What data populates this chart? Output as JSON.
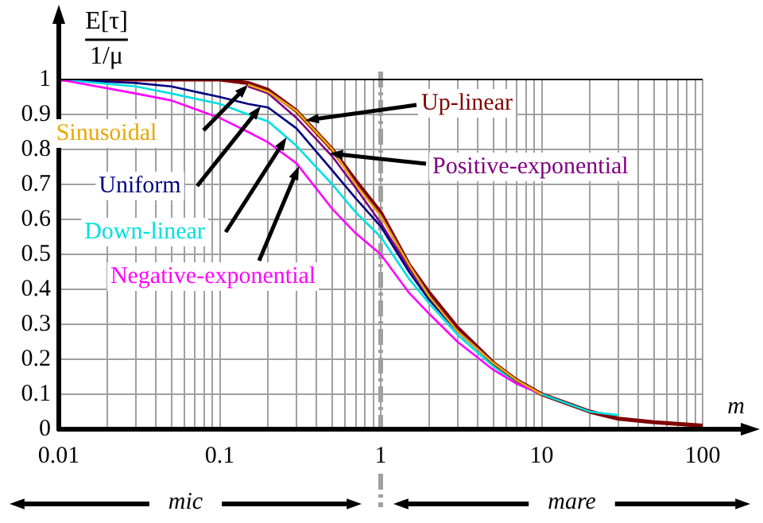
{
  "chart_data": {
    "type": "line",
    "xlabel": "m",
    "ylabel": "E[τ]\n1/μ",
    "log": "x",
    "grid": true,
    "legend": false,
    "marker": "none",
    "line_style": "solid",
    "x": [
      0.01,
      0.03,
      0.05,
      0.1,
      0.15,
      0.2,
      0.3,
      0.5,
      0.7,
      1,
      1.5,
      2,
      3,
      5,
      7,
      10,
      20,
      30,
      50,
      100
    ],
    "xlim": [
      0.01,
      100
    ],
    "xticks": [
      0.01,
      {
        "value": 0.02,
        "label": null
      },
      {
        "value": 0.03,
        "label": null
      },
      {
        "value": 0.04,
        "label": null
      },
      {
        "value": 0.05,
        "label": null
      },
      {
        "value": 0.06,
        "label": null
      },
      {
        "value": 0.07,
        "label": null
      },
      {
        "value": 0.08,
        "label": null
      },
      {
        "value": 0.09,
        "label": null
      },
      0.1,
      {
        "value": 0.2,
        "label": null
      },
      {
        "value": 0.3,
        "label": null
      },
      {
        "value": 0.4,
        "label": null
      },
      {
        "value": 0.5,
        "label": null
      },
      {
        "value": 0.6,
        "label": null
      },
      {
        "value": 0.7,
        "label": null
      },
      {
        "value": 0.8,
        "label": null
      },
      {
        "value": 0.9,
        "label": null
      },
      1,
      {
        "value": 2,
        "label": null
      },
      {
        "value": 3,
        "label": null
      },
      {
        "value": 4,
        "label": null
      },
      {
        "value": 5,
        "label": null
      },
      {
        "value": 6,
        "label": null
      },
      {
        "value": 7,
        "label": null
      },
      {
        "value": 8,
        "label": null
      },
      {
        "value": 9,
        "label": null
      },
      10,
      {
        "value": 20,
        "label": null
      },
      {
        "value": 30,
        "label": null
      },
      {
        "value": 40,
        "label": null
      },
      {
        "value": 50,
        "label": null
      },
      {
        "value": 60,
        "label": null
      },
      {
        "value": 70,
        "label": null
      },
      {
        "value": 80,
        "label": null
      },
      {
        "value": 90,
        "label": null
      },
      100
    ],
    "ylim": [
      0,
      1
    ],
    "yticks": [
      0,
      0.1,
      0.2,
      0.3,
      0.4,
      0.5,
      0.6,
      0.7,
      0.8,
      0.9,
      1
    ],
    "series": [
      {
        "name": "Up-linear",
        "color": "#800000",
        "values": [
          1,
          1,
          1,
          1,
          0.99,
          0.97,
          0.91,
          0.8,
          0.71,
          0.62,
          0.47,
          0.39,
          0.29,
          0.19,
          0.14,
          0.1,
          0.05,
          0.03,
          0.02,
          0.01
        ]
      },
      {
        "name": "Positive-exponential",
        "color": "#800080",
        "values": [
          null,
          null,
          null,
          null,
          0.98,
          0.96,
          0.89,
          0.78,
          0.69,
          0.59,
          0.46,
          0.38,
          0.28,
          0.19,
          0.14,
          0.1,
          null,
          null,
          null,
          null
        ]
      },
      {
        "name": "Sinusoidal",
        "color": "#e8a800",
        "values": [
          null,
          null,
          null,
          null,
          0.985,
          0.965,
          0.91,
          0.8,
          0.7,
          0.61,
          0.47,
          0.38,
          0.28,
          0.19,
          0.14,
          0.1,
          null,
          null,
          null,
          null
        ]
      },
      {
        "name": "Uniform",
        "color": "#000080",
        "values": [
          1,
          0.99,
          0.98,
          0.95,
          0.93,
          0.92,
          0.86,
          0.74,
          0.66,
          0.58,
          0.45,
          0.37,
          0.28,
          0.19,
          0.14,
          0.1,
          null,
          null,
          null,
          null
        ]
      },
      {
        "name": "Down-linear",
        "color": "#00e0e0",
        "values": [
          1,
          0.98,
          0.96,
          0.93,
          0.9,
          0.88,
          0.81,
          0.7,
          0.62,
          0.55,
          0.43,
          0.36,
          0.27,
          0.18,
          0.13,
          0.1,
          0.05,
          0.04,
          null,
          null
        ]
      },
      {
        "name": "Negative-exponential",
        "color": "#ff00ff",
        "values": [
          1,
          0.96,
          0.94,
          0.89,
          0.85,
          0.82,
          0.76,
          0.63,
          0.56,
          0.5,
          0.39,
          0.33,
          0.25,
          0.17,
          0.13,
          0.1,
          null,
          null,
          null,
          null
        ]
      }
    ],
    "ref_lines": [
      {
        "axis": "x",
        "value": 1,
        "color": "#a0a0a0",
        "line_style": "dashdot"
      }
    ],
    "annotations": [
      "mic",
      "mare"
    ]
  }
}
